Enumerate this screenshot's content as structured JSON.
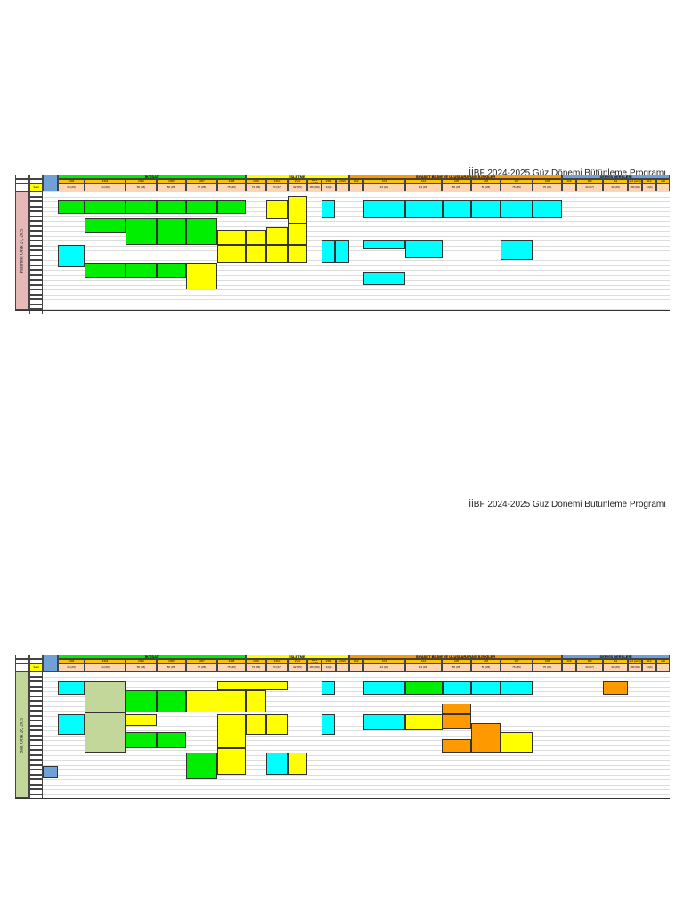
{
  "title": "İİBF 2024-2025 Güz Dönemi Bütünleme Programı",
  "groups": [
    "İKTİSAT",
    "İŞLETME",
    "SİYASET BİLİMİ VE ULUSLARARASI İLİŞKİLER",
    "SERVİS DERSLERİ"
  ],
  "group_colors": [
    "#00ee00",
    "#ffff00",
    "#ff9900",
    "#6fa0d8"
  ],
  "saat_label": "Saat",
  "rooms": [
    "2303",
    "2304",
    "2305",
    "2306",
    "2307",
    "2308",
    "2309",
    "2310",
    "2311",
    "2312 (amfi)",
    "2313",
    "2316",
    "102",
    "103",
    "104",
    "105",
    "106",
    "107",
    "108",
    "109",
    "110",
    "111",
    "112 (amfi)",
    "113",
    "116"
  ],
  "capacities": [
    "44 (26)",
    "44 (26)",
    "56 (35)",
    "56 (35)",
    "75 (35)",
    "75 (35)",
    "73 (35)",
    "74 (37)",
    "92 (55)",
    "180 (90)",
    "14(4)",
    "",
    "",
    "44 (26)",
    "44 (26)",
    "56 (35)",
    "56 (35)",
    "75 (35)",
    "75 (35)",
    "",
    "44 (27)",
    "44 (26)",
    "180 (90)",
    "14(4)",
    ""
  ],
  "days": [
    "Pazartesi, Ocak 27, 2025",
    "Salı, Ocak 28, 2025"
  ]
}
